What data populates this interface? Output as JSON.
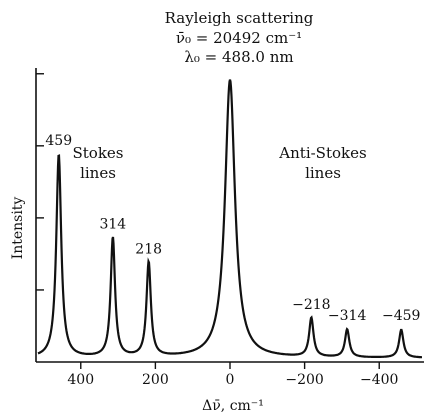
{
  "chart_data": {
    "type": "line",
    "title": "",
    "annotation": {
      "line1": "Rayleigh scattering",
      "line2": "ν̄₀ = 20492 cm⁻¹",
      "line3": "λ₀ = 488.0 nm"
    },
    "xlabel": "Δν̄, cm⁻¹",
    "ylabel": "Intensity",
    "xlim": [
      520,
      -520
    ],
    "ylim": [
      0,
      1
    ],
    "x_ticks": [
      400,
      200,
      0,
      -200,
      -400
    ],
    "x_tick_labels": [
      "400",
      "200",
      "0",
      "−200",
      "−400"
    ],
    "y_ticks_count": 4,
    "grid": false,
    "region_labels": {
      "stokes": [
        "Stokes",
        "lines"
      ],
      "anti_stokes": [
        "Anti-Stokes",
        "lines"
      ]
    },
    "peaks": [
      {
        "x": 459,
        "height": 0.73,
        "label": "459"
      },
      {
        "x": 314,
        "height": 0.43,
        "label": "314"
      },
      {
        "x": 218,
        "height": 0.34,
        "label": "218"
      },
      {
        "x": 0,
        "height": 1.0,
        "label": ""
      },
      {
        "x": -218,
        "height": 0.14,
        "label": "−218"
      },
      {
        "x": -314,
        "height": 0.1,
        "label": "−314"
      },
      {
        "x": -459,
        "height": 0.1,
        "label": "−459"
      }
    ]
  }
}
